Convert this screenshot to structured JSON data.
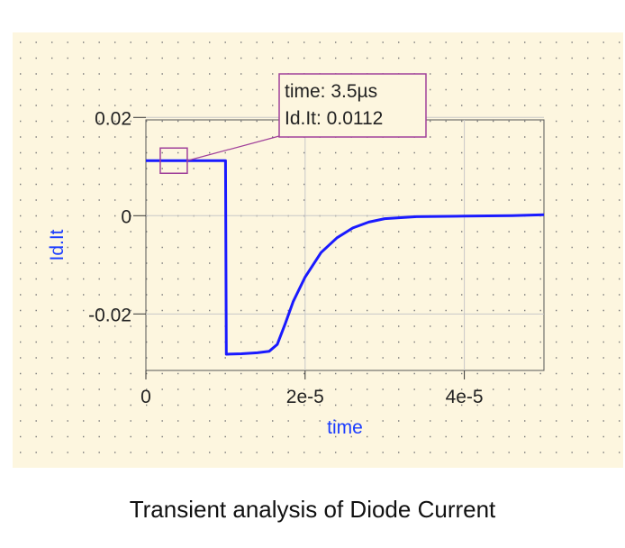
{
  "caption": "Transient analysis of Diode Current",
  "chart_data": {
    "type": "line",
    "title": "",
    "xlabel": "time",
    "ylabel": "Id.It",
    "xlim": [
      0,
      5e-05
    ],
    "ylim": [
      -0.0315,
      0.0195
    ],
    "x_ticks": [
      0,
      2e-05,
      4e-05
    ],
    "x_tick_labels": [
      "0",
      "2e-5",
      "4e-5"
    ],
    "y_ticks": [
      0.02,
      0,
      -0.02
    ],
    "y_tick_labels": [
      "0.02",
      "0",
      "-0.02"
    ],
    "grid": true,
    "label_color": "#1a3cff",
    "series": [
      {
        "color": "#1a1aff",
        "points": [
          [
            0,
            0.0112
          ],
          [
            3.5e-06,
            0.0112
          ],
          [
            1e-05,
            0.0112
          ],
          [
            1.01e-05,
            -0.0282
          ],
          [
            1.2e-05,
            -0.0281
          ],
          [
            1.4e-05,
            -0.0279
          ],
          [
            1.55e-05,
            -0.0276
          ],
          [
            1.65e-05,
            -0.0262
          ],
          [
            1.75e-05,
            -0.022
          ],
          [
            1.85e-05,
            -0.0175
          ],
          [
            2e-05,
            -0.0125
          ],
          [
            2.2e-05,
            -0.0075
          ],
          [
            2.4e-05,
            -0.0045
          ],
          [
            2.6e-05,
            -0.0025
          ],
          [
            2.8e-05,
            -0.0013
          ],
          [
            3e-05,
            -0.0006
          ],
          [
            3.4e-05,
            -0.0002
          ],
          [
            4e-05,
            -0.0001
          ],
          [
            4.6e-05,
            0.0
          ],
          [
            5e-05,
            0.0002
          ]
        ]
      }
    ],
    "marker": {
      "x": 3.5e-06,
      "y": 0.0112,
      "lines": [
        "time: 3.5µs",
        "Id.It: 0.0112"
      ]
    }
  }
}
